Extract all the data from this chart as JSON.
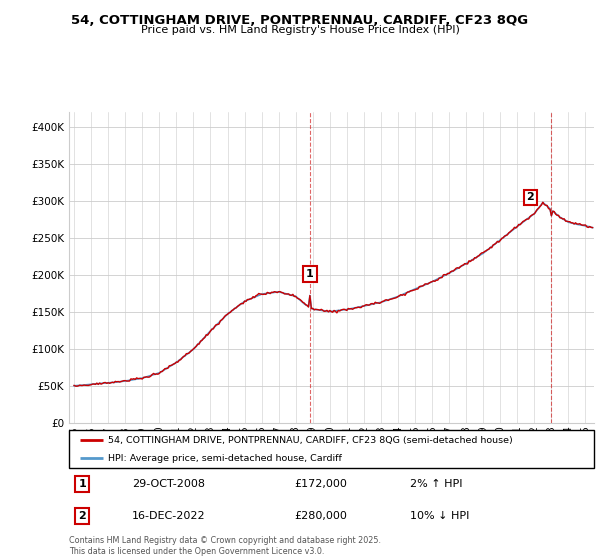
{
  "title_line1": "54, COTTINGHAM DRIVE, PONTPRENNAU, CARDIFF, CF23 8QG",
  "title_line2": "Price paid vs. HM Land Registry's House Price Index (HPI)",
  "ylim": [
    0,
    420000
  ],
  "yticks": [
    0,
    50000,
    100000,
    150000,
    200000,
    250000,
    300000,
    350000,
    400000
  ],
  "ytick_labels": [
    "£0",
    "£50K",
    "£100K",
    "£150K",
    "£200K",
    "£250K",
    "£300K",
    "£350K",
    "£400K"
  ],
  "legend_line1": "54, COTTINGHAM DRIVE, PONTPRENNAU, CARDIFF, CF23 8QG (semi-detached house)",
  "legend_line2": "HPI: Average price, semi-detached house, Cardiff",
  "marker1_date": "29-OCT-2008",
  "marker1_price": "£172,000",
  "marker1_pct": "2% ↑ HPI",
  "marker1_x": 2008.83,
  "marker1_y": 172000,
  "marker2_date": "16-DEC-2022",
  "marker2_price": "£280,000",
  "marker2_pct": "10% ↓ HPI",
  "marker2_x": 2022.96,
  "marker2_y": 280000,
  "footnote": "Contains HM Land Registry data © Crown copyright and database right 2025.\nThis data is licensed under the Open Government Licence v3.0.",
  "line_color_red": "#cc0000",
  "line_color_blue": "#5599cc",
  "marker_box_color": "#cc0000",
  "background_color": "#ffffff",
  "grid_color": "#cccccc",
  "xlim_left": 1994.7,
  "xlim_right": 2025.5
}
